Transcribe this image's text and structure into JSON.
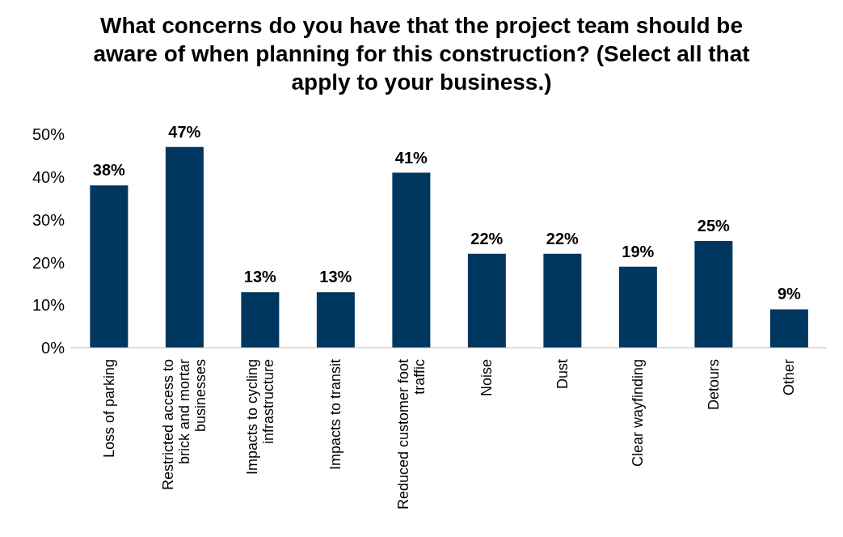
{
  "chart_data": {
    "type": "bar",
    "title": "What concerns do you have that the project team should be aware of when planning for this construction? (Select all that apply to your business.)",
    "categories": [
      "Loss of parking",
      "Restricted access to brick and mortar businesses",
      "Impacts to cycling infrastructure",
      "Impacts to transit",
      "Reduced customer foot traffic",
      "Noise",
      "Dust",
      "Clear wayfinding",
      "Detours",
      "Other"
    ],
    "values": [
      38,
      47,
      13,
      13,
      41,
      22,
      22,
      19,
      25,
      9
    ],
    "value_labels": [
      "38%",
      "47%",
      "13%",
      "13%",
      "41%",
      "22%",
      "22%",
      "19%",
      "25%",
      "9%"
    ],
    "color": "#003761",
    "ylim": [
      0,
      50
    ],
    "yticks": [
      {
        "value": 0,
        "label": "0%"
      },
      {
        "value": 10,
        "label": "10%"
      },
      {
        "value": 20,
        "label": "20%"
      },
      {
        "value": 30,
        "label": "30%"
      },
      {
        "value": 40,
        "label": "40%"
      },
      {
        "value": 50,
        "label": "50%"
      }
    ],
    "grid": false,
    "legend": false
  }
}
